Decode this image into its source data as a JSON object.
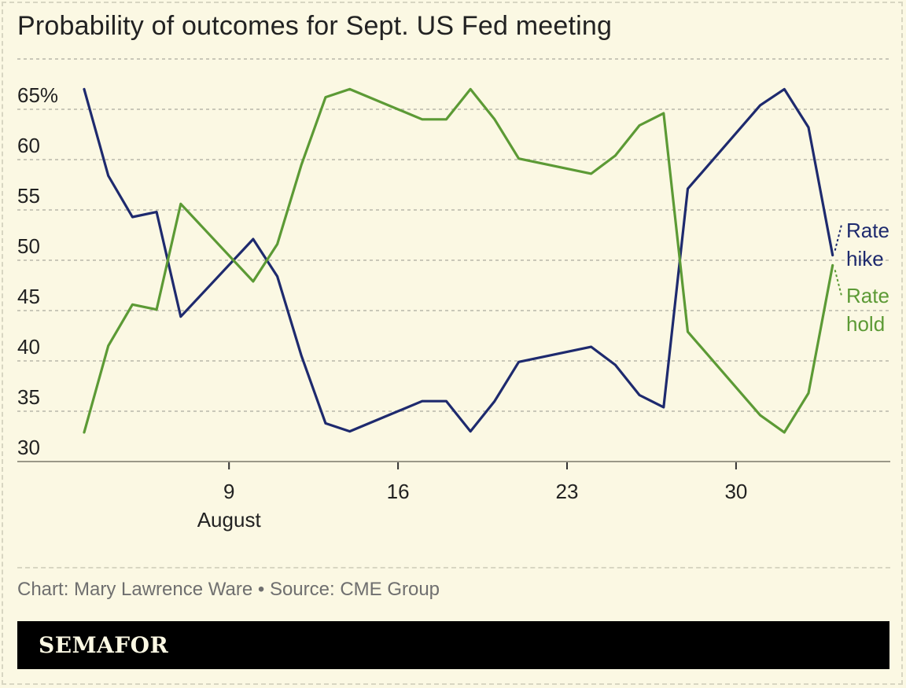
{
  "title": "Probability of outcomes for Sept. US Fed meeting",
  "credit": "Chart: Mary Lawrence Ware • Source: CME Group",
  "brand": "SEMAFOR",
  "colors": {
    "background": "#fbf8e3",
    "rate_hike": "#1e2a6e",
    "rate_hold": "#5c9a35",
    "grid": "#c9c7b8",
    "text": "#222222"
  },
  "chart_data": {
    "type": "line",
    "title": "Probability of outcomes for Sept. US Fed meeting",
    "x_unit": "day of month",
    "x_range": [
      3,
      34
    ],
    "ylim": [
      30,
      65
    ],
    "y_ticks": [
      {
        "value": 30,
        "label": "30"
      },
      {
        "value": 35,
        "label": "35"
      },
      {
        "value": 40,
        "label": "40"
      },
      {
        "value": 45,
        "label": "45"
      },
      {
        "value": 50,
        "label": "50"
      },
      {
        "value": 55,
        "label": "55"
      },
      {
        "value": 60,
        "label": "60"
      },
      {
        "value": 65,
        "label": "65%"
      }
    ],
    "x_ticks": [
      {
        "value": 9,
        "label": "9"
      },
      {
        "value": 16,
        "label": "16"
      },
      {
        "value": 23,
        "label": "23"
      },
      {
        "value": 30,
        "label": "30"
      }
    ],
    "x_month_label": "August",
    "grid": true,
    "series": [
      {
        "name": "Rate hike",
        "label_lines": [
          "Rate",
          "hike"
        ],
        "color": "#1e2a6e",
        "x": [
          3,
          4,
          5,
          6,
          7,
          10,
          11,
          12,
          13,
          14,
          17,
          18,
          19,
          20,
          21,
          24,
          25,
          26,
          27,
          28,
          31,
          32,
          33,
          34
        ],
        "y": [
          67.0,
          58.4,
          54.3,
          54.8,
          44.4,
          52.1,
          48.4,
          40.5,
          33.8,
          33.0,
          36.0,
          36.0,
          33.0,
          36.0,
          39.9,
          41.4,
          39.6,
          36.6,
          35.4,
          57.1,
          65.4,
          67.0,
          63.2,
          50.5
        ]
      },
      {
        "name": "Rate hold",
        "label_lines": [
          "Rate",
          "hold"
        ],
        "color": "#5c9a35",
        "x": [
          3,
          4,
          5,
          6,
          7,
          10,
          11,
          12,
          13,
          14,
          17,
          18,
          19,
          20,
          21,
          24,
          25,
          26,
          27,
          28,
          31,
          32,
          33,
          34
        ],
        "y": [
          32.9,
          41.5,
          45.6,
          45.1,
          55.6,
          47.9,
          51.6,
          59.5,
          66.2,
          67.0,
          64.0,
          64.0,
          67.0,
          64.0,
          60.1,
          58.6,
          60.4,
          63.4,
          64.6,
          42.9,
          34.6,
          32.9,
          36.8,
          49.5
        ]
      }
    ]
  }
}
